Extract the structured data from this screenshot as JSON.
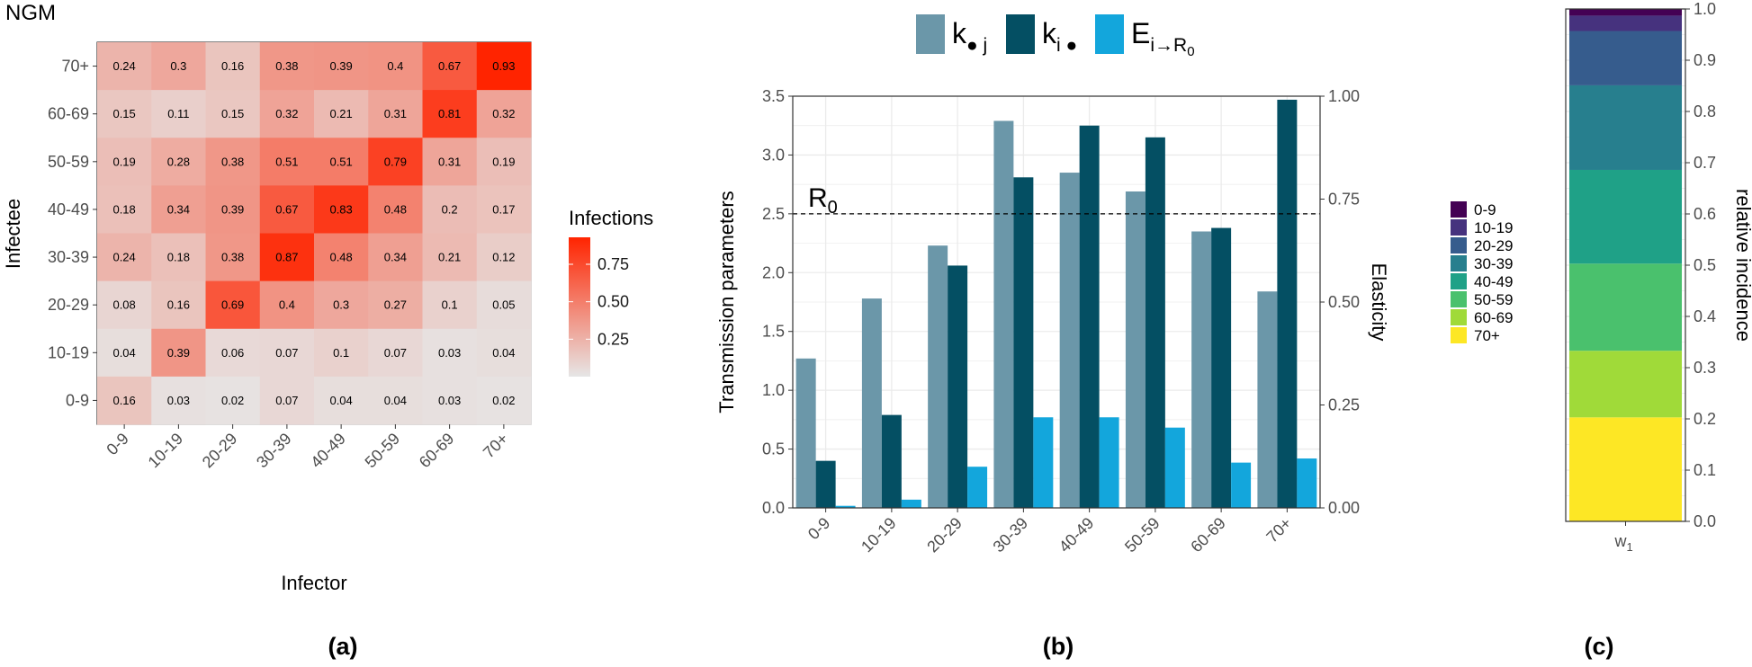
{
  "chart_data": [
    {
      "type": "heatmap",
      "panel_label": "(a)",
      "title": "NGM",
      "xlabel": "Infector",
      "ylabel": "Infectee",
      "categories": [
        "0-9",
        "10-19",
        "20-29",
        "30-39",
        "40-49",
        "50-59",
        "60-69",
        "70+"
      ],
      "rows_top_to_bottom": [
        "70+",
        "60-69",
        "50-59",
        "40-49",
        "30-39",
        "20-29",
        "10-19",
        "0-9"
      ],
      "values": [
        [
          0.24,
          0.3,
          0.16,
          0.38,
          0.39,
          0.4,
          0.67,
          0.93
        ],
        [
          0.15,
          0.11,
          0.15,
          0.32,
          0.21,
          0.31,
          0.81,
          0.32
        ],
        [
          0.19,
          0.28,
          0.38,
          0.51,
          0.51,
          0.79,
          0.31,
          0.19
        ],
        [
          0.18,
          0.34,
          0.39,
          0.67,
          0.83,
          0.48,
          0.2,
          0.17
        ],
        [
          0.24,
          0.18,
          0.38,
          0.87,
          0.48,
          0.34,
          0.21,
          0.12
        ],
        [
          0.08,
          0.16,
          0.69,
          0.4,
          0.3,
          0.27,
          0.1,
          0.05
        ],
        [
          0.04,
          0.39,
          0.06,
          0.07,
          0.1,
          0.07,
          0.03,
          0.04
        ],
        [
          0.16,
          0.03,
          0.02,
          0.07,
          0.04,
          0.04,
          0.03,
          0.02
        ]
      ],
      "colorscale": {
        "low": "#e6e6e6",
        "high": "#ff2400",
        "range": [
          0,
          0.93
        ]
      },
      "legend": {
        "title": "Infections",
        "ticks": [
          "0.75",
          "0.50",
          "0.25"
        ],
        "placement": "right"
      }
    },
    {
      "type": "bar",
      "panel_label": "(b)",
      "categories": [
        "0-9",
        "10-19",
        "20-29",
        "30-39",
        "40-49",
        "50-59",
        "60-69",
        "70+"
      ],
      "series": [
        {
          "name": "k•j",
          "axis": "left",
          "color": "#6b97a9",
          "values": [
            1.27,
            1.78,
            2.23,
            3.29,
            2.85,
            2.69,
            2.35,
            1.84
          ]
        },
        {
          "name": "ki•",
          "axis": "left",
          "color": "#044f63",
          "values": [
            0.4,
            0.79,
            2.06,
            2.81,
            3.25,
            3.15,
            2.38,
            3.47
          ]
        },
        {
          "name": "Ei→R0",
          "axis": "right",
          "color": "#13a6dc",
          "values": [
            0.005,
            0.02,
            0.1,
            0.22,
            0.22,
            0.195,
            0.11,
            0.12
          ]
        }
      ],
      "ylabel": "Transmission parameters",
      "ylabel_right": "Elasticity",
      "ylim": [
        0,
        3.5
      ],
      "ylim_right": [
        0,
        1
      ],
      "yticks": [
        "0.0",
        "0.5",
        "1.0",
        "1.5",
        "2.0",
        "2.5",
        "3.0",
        "3.5"
      ],
      "yticks_right": [
        "0.00",
        "0.25",
        "0.50",
        "0.75",
        "1.00"
      ],
      "reference_line": {
        "y": 2.5,
        "label": "R",
        "label_sub": "0"
      },
      "legend_labels": [
        {
          "main": "k",
          "sub": "● j"
        },
        {
          "main": "k",
          "sub": "i ●"
        },
        {
          "main": "E",
          "sub": "i→R",
          "subsub": "0"
        }
      ],
      "legend_placement": "top",
      "grid": true
    },
    {
      "type": "bar",
      "stacked": true,
      "panel_label": "(c)",
      "categories": [
        "w1"
      ],
      "x_tick": {
        "main": "w",
        "sub": "1"
      },
      "ylabel": "relative incidence",
      "ylim": [
        0,
        1
      ],
      "yticks": [
        "0.0",
        "0.1",
        "0.2",
        "0.3",
        "0.4",
        "0.5",
        "0.6",
        "0.7",
        "0.8",
        "0.9",
        "1.0"
      ],
      "stack_order_bottom_to_top": [
        "70+",
        "60-69",
        "50-59",
        "40-49",
        "30-39",
        "20-29",
        "10-19",
        "0-9"
      ],
      "series": [
        {
          "name": "70+",
          "color": "#fde725",
          "value": 0.203
        },
        {
          "name": "60-69",
          "color": "#a0da39",
          "value": 0.13
        },
        {
          "name": "50-59",
          "color": "#4ac16d",
          "value": 0.17
        },
        {
          "name": "40-49",
          "color": "#1fa187",
          "value": 0.183
        },
        {
          "name": "30-39",
          "color": "#277f8e",
          "value": 0.165
        },
        {
          "name": "20-29",
          "color": "#365c8d",
          "value": 0.106
        },
        {
          "name": "10-19",
          "color": "#46327e",
          "value": 0.03
        },
        {
          "name": "0-9",
          "color": "#440154",
          "value": 0.013
        }
      ],
      "legend_order": [
        "0-9",
        "10-19",
        "20-29",
        "30-39",
        "40-49",
        "50-59",
        "60-69",
        "70+"
      ],
      "legend_placement": "left"
    }
  ]
}
